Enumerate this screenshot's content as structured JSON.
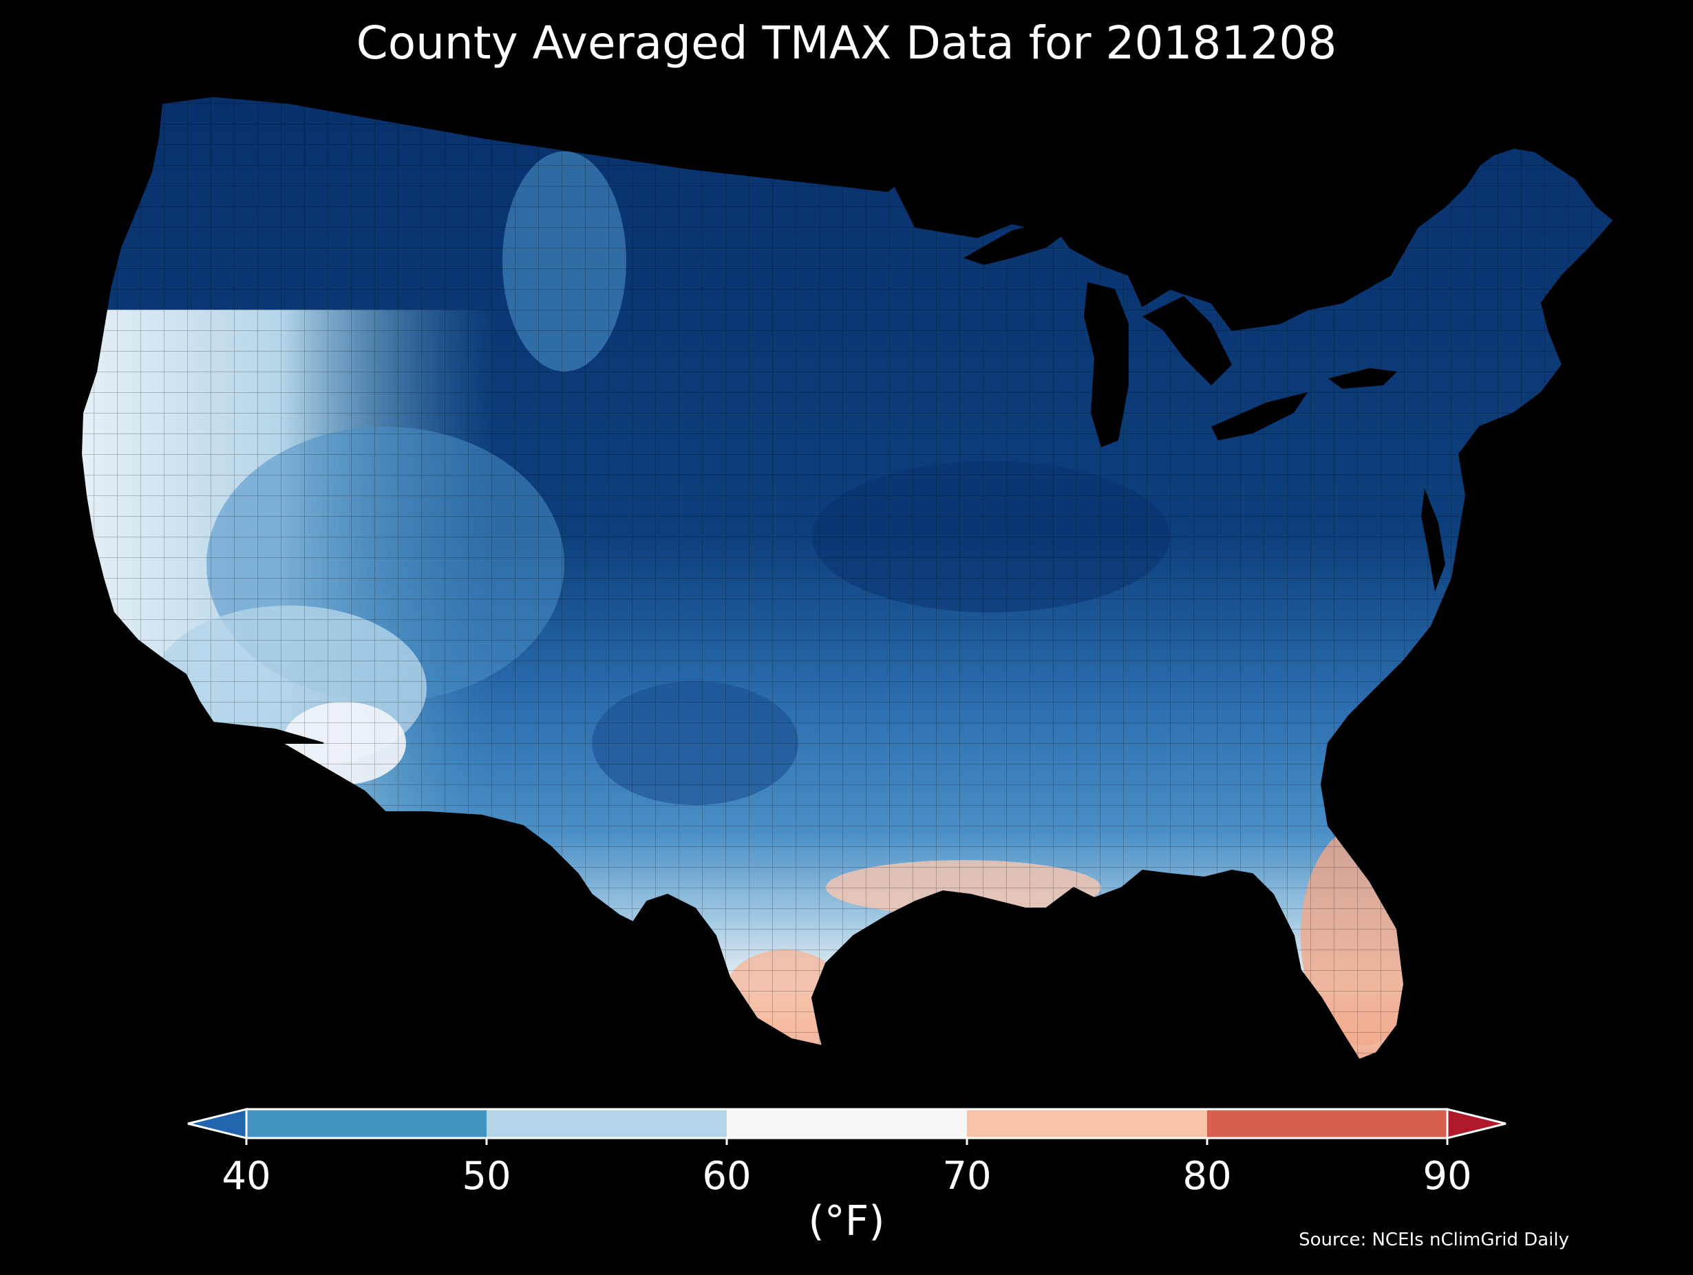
{
  "title": "County Averaged TMAX Data for 20181208",
  "units_label": "(°F)",
  "source": "Source: NCEIs nClimGrid Daily",
  "colorbar": {
    "min_arrow_color": "#2166ac",
    "max_arrow_color": "#b2182b",
    "bins": [
      {
        "from": 40,
        "to": 50,
        "color": "#4393c3"
      },
      {
        "from": 50,
        "to": 60,
        "color": "#b4d5e8"
      },
      {
        "from": 60,
        "to": 70,
        "color": "#f7f7f7"
      },
      {
        "from": 70,
        "to": 80,
        "color": "#f9c3a7"
      },
      {
        "from": 80,
        "to": 90,
        "color": "#d6604d"
      }
    ],
    "ticks": [
      "40",
      "50",
      "60",
      "70",
      "80",
      "90"
    ]
  },
  "map": {
    "region": "contiguous-united-states",
    "variable": "TMAX",
    "colors": {
      "below_40_dark": "#08306b",
      "below_40": "#1b4f8f",
      "band_40_50": "#4393c3",
      "band_50_60": "#b4d5e8",
      "band_60_70": "#f2f5f8",
      "band_70_80": "#f9c3a7",
      "band_80_90": "#e0705a"
    }
  }
}
